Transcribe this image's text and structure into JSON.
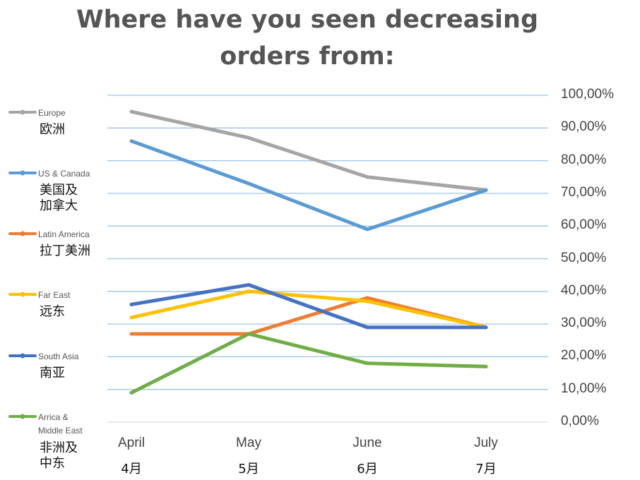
{
  "chart_data": {
    "type": "line",
    "title_lines": [
      "Where have you seen decreasing",
      "orders from:"
    ],
    "categories": [
      "April",
      "May",
      "June",
      "July"
    ],
    "categories_zh": [
      "4月",
      "5月",
      "6月",
      "7月"
    ],
    "ylim": [
      0,
      100
    ],
    "ytick_labels": [
      "0,00%",
      "10,00%",
      "20,00%",
      "30,00%",
      "40,00%",
      "50,00%",
      "60,00%",
      "70,00%",
      "80,00%",
      "90,00%",
      "100,00%"
    ],
    "grid": true,
    "legend_position": "left",
    "series": [
      {
        "name": "Europe",
        "name_zh": "欧洲",
        "color": "#a5a5a5",
        "values": [
          95,
          87,
          75,
          71
        ]
      },
      {
        "name": "US & Canada",
        "name_zh": "美国及\n加拿大",
        "color": "#5b9bd5",
        "values": [
          86,
          73,
          59,
          71
        ]
      },
      {
        "name": "Latin America",
        "name_zh": "拉丁美洲",
        "color": "#ed7d31",
        "values": [
          27,
          27,
          38,
          29
        ]
      },
      {
        "name": "Far East",
        "name_zh": "远东",
        "color": "#ffc000",
        "values": [
          32,
          40,
          37,
          29
        ]
      },
      {
        "name": "South Asia",
        "name_zh": "南亚",
        "color": "#4472c4",
        "values": [
          36,
          42,
          29,
          29
        ]
      },
      {
        "name": "Arrica &\nMiddle East",
        "name_zh": "非洲及\n中东",
        "color": "#70ad47",
        "values": [
          9,
          27,
          18,
          17
        ]
      }
    ]
  }
}
